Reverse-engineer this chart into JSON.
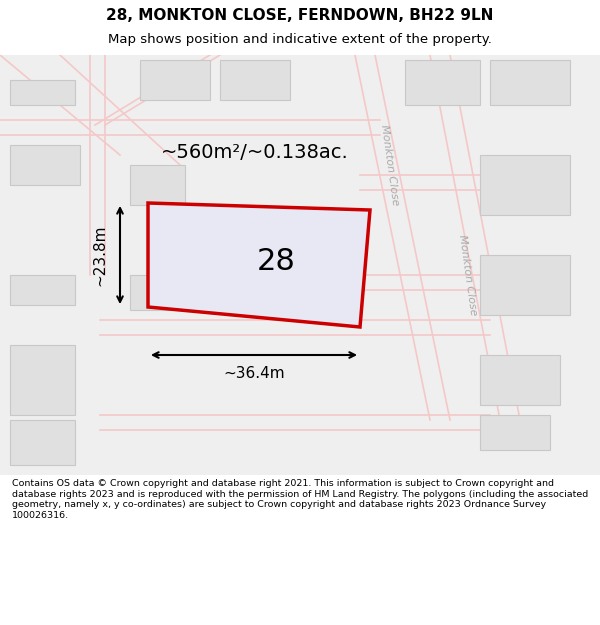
{
  "title": "28, MONKTON CLOSE, FERNDOWN, BH22 9LN",
  "subtitle": "Map shows position and indicative extent of the property.",
  "footer": "Contains OS data © Crown copyright and database right 2021. This information is subject to Crown copyright and database rights 2023 and is reproduced with the permission of HM Land Registry. The polygons (including the associated geometry, namely x, y co-ordinates) are subject to Crown copyright and database rights 2023 Ordnance Survey 100026316.",
  "bg_color": "#f0f0f0",
  "map_bg": "#f0f0f0",
  "plot_color": "#cc0000",
  "plot_fill": "#e8e8f0",
  "road_color": "#f5c8c8",
  "building_color": "#e0e0e0",
  "building_edge": "#c8c8c8",
  "area_text": "~560m²/~0.138ac.",
  "number_text": "28",
  "dim_width": "~36.4m",
  "dim_height": "~23.8m",
  "road_label_top": "Monkton Close",
  "road_label_right": "Monkton Close",
  "title_fontsize": 11,
  "subtitle_fontsize": 9.5,
  "footer_fontsize": 6.8
}
